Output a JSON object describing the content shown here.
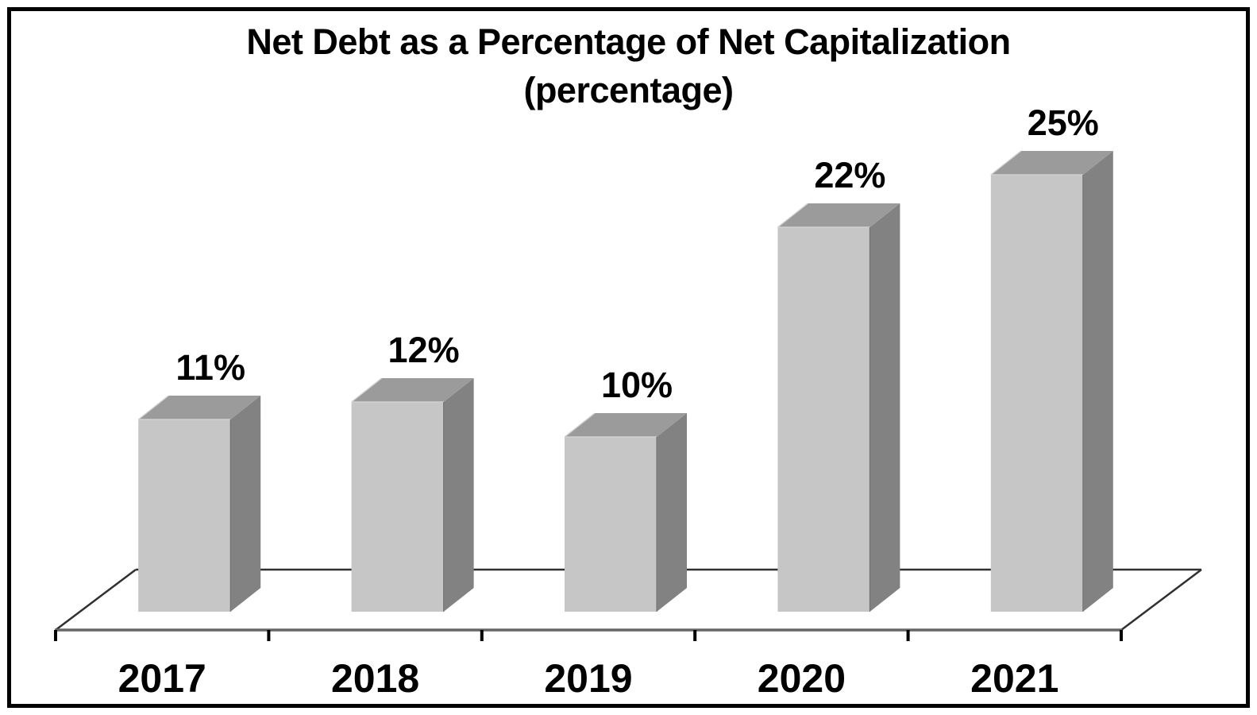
{
  "window": {
    "background_color": "#ffffff",
    "frame_color": "#000000"
  },
  "chart_data": {
    "type": "bar",
    "style": "3d-column",
    "title": "Net Debt as a Percentage of Net Capitalization",
    "subtitle": "(percentage)",
    "categories": [
      "2017",
      "2018",
      "2019",
      "2020",
      "2021"
    ],
    "values": [
      11,
      12,
      10,
      22,
      25
    ],
    "value_labels": [
      "11%",
      "12%",
      "10%",
      "22%",
      "25%"
    ],
    "unit": "percent",
    "ylim": [
      0,
      27
    ],
    "grid": false,
    "legend": false,
    "axes": {
      "x_axis_visible": true,
      "y_axis_visible": false
    },
    "colors": {
      "bar_front": "#c6c6c6",
      "bar_top": "#9b9b9b",
      "bar_side": "#828282",
      "bar_edge_light": "#d4d4d4",
      "bar_edge_dark": "#6e6e6e",
      "baseline": "#666666",
      "floor_line": "#303030",
      "tick": "#000000",
      "label": "#000000"
    }
  }
}
